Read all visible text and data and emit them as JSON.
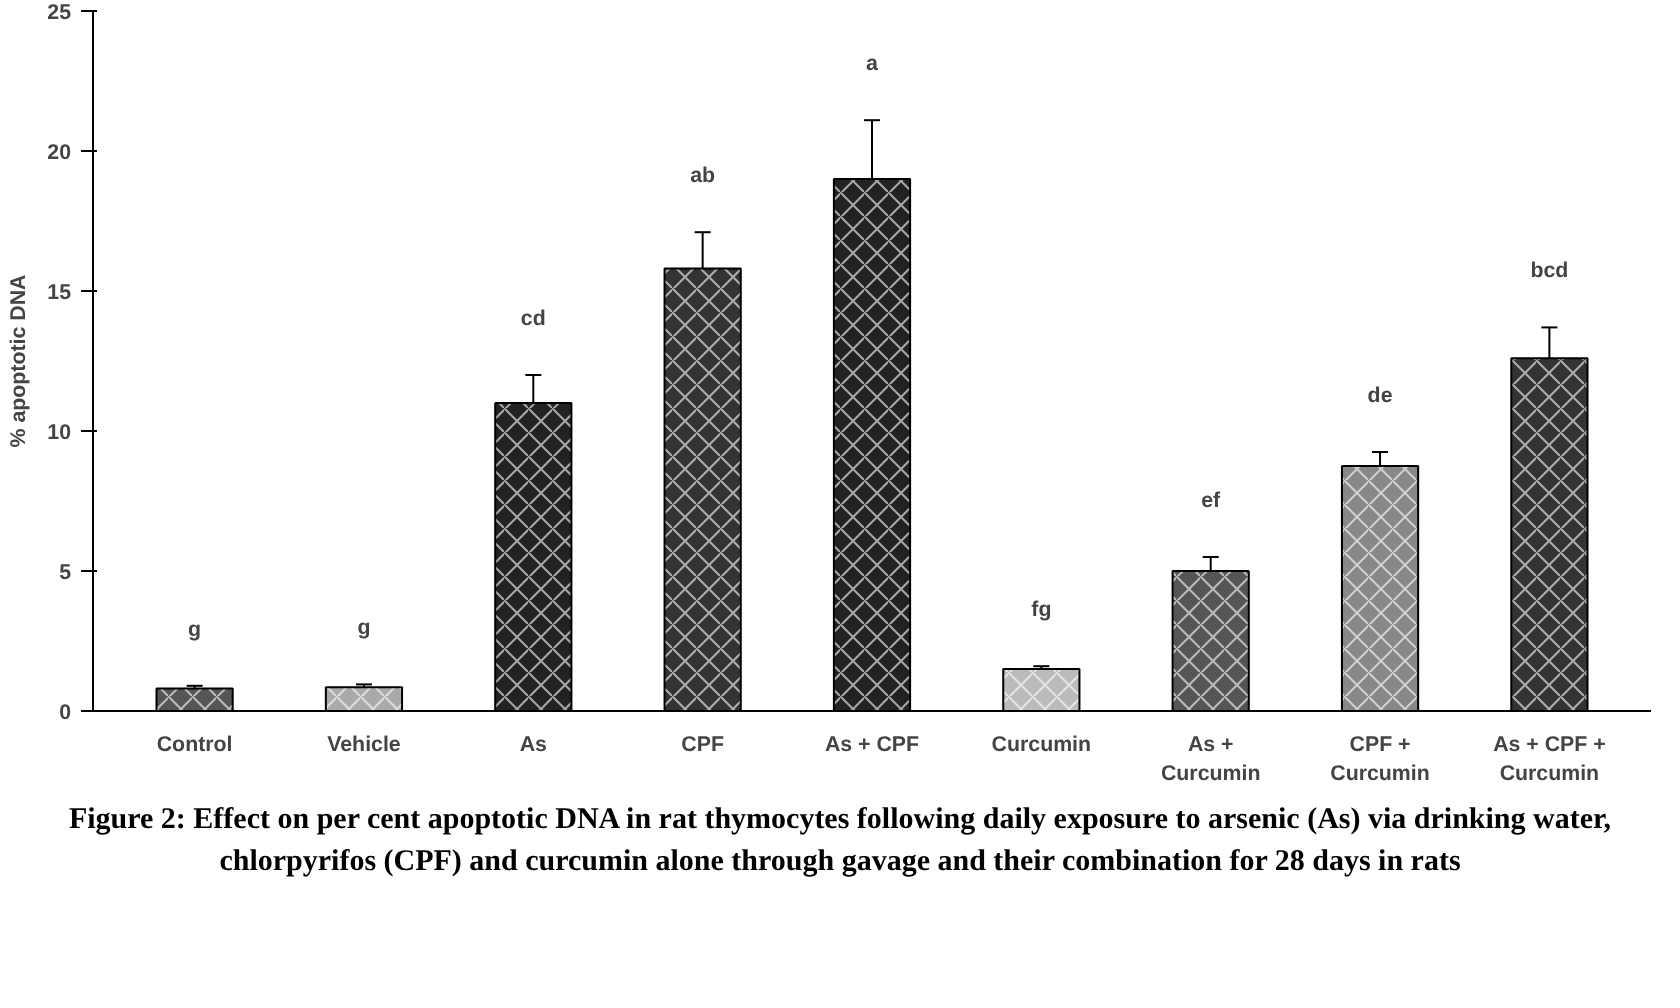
{
  "chart_data": {
    "type": "bar",
    "ylabel": "% apoptotic DNA",
    "categories": [
      "Control",
      "Vehicle",
      "As",
      "CPF",
      "As + CPF",
      "Curcumin",
      "As +\nCurcumin",
      "CPF +\nCurcumin",
      "As + CPF +\nCurcumin"
    ],
    "values": [
      0.8,
      0.85,
      11.0,
      15.8,
      19.0,
      1.5,
      5.0,
      8.75,
      12.6
    ],
    "errors": [
      0.1,
      0.1,
      1.0,
      1.3,
      2.1,
      0.1,
      0.5,
      0.5,
      1.1
    ],
    "colors": [
      "#555555",
      "#aaaaaa",
      "#222222",
      "#333333",
      "#222222",
      "#bbbbbb",
      "#555555",
      "#888888",
      "#333333"
    ],
    "ylim": [
      0,
      25
    ],
    "yticks": [
      0,
      5,
      10,
      15,
      20,
      25
    ],
    "grid": false,
    "annotations": [
      "g",
      "g",
      "cd",
      "ab",
      "a",
      "fg",
      "ef",
      "de",
      "bcd",
      "Figure 2: Effect on per cent apoptotic DNA in rat thymocytes following daily exposure to arsenic (As) via drinking water, chlorpyrifos (CPF) and curcumin alone through gavage and their combination for 28 days in rats"
    ]
  }
}
